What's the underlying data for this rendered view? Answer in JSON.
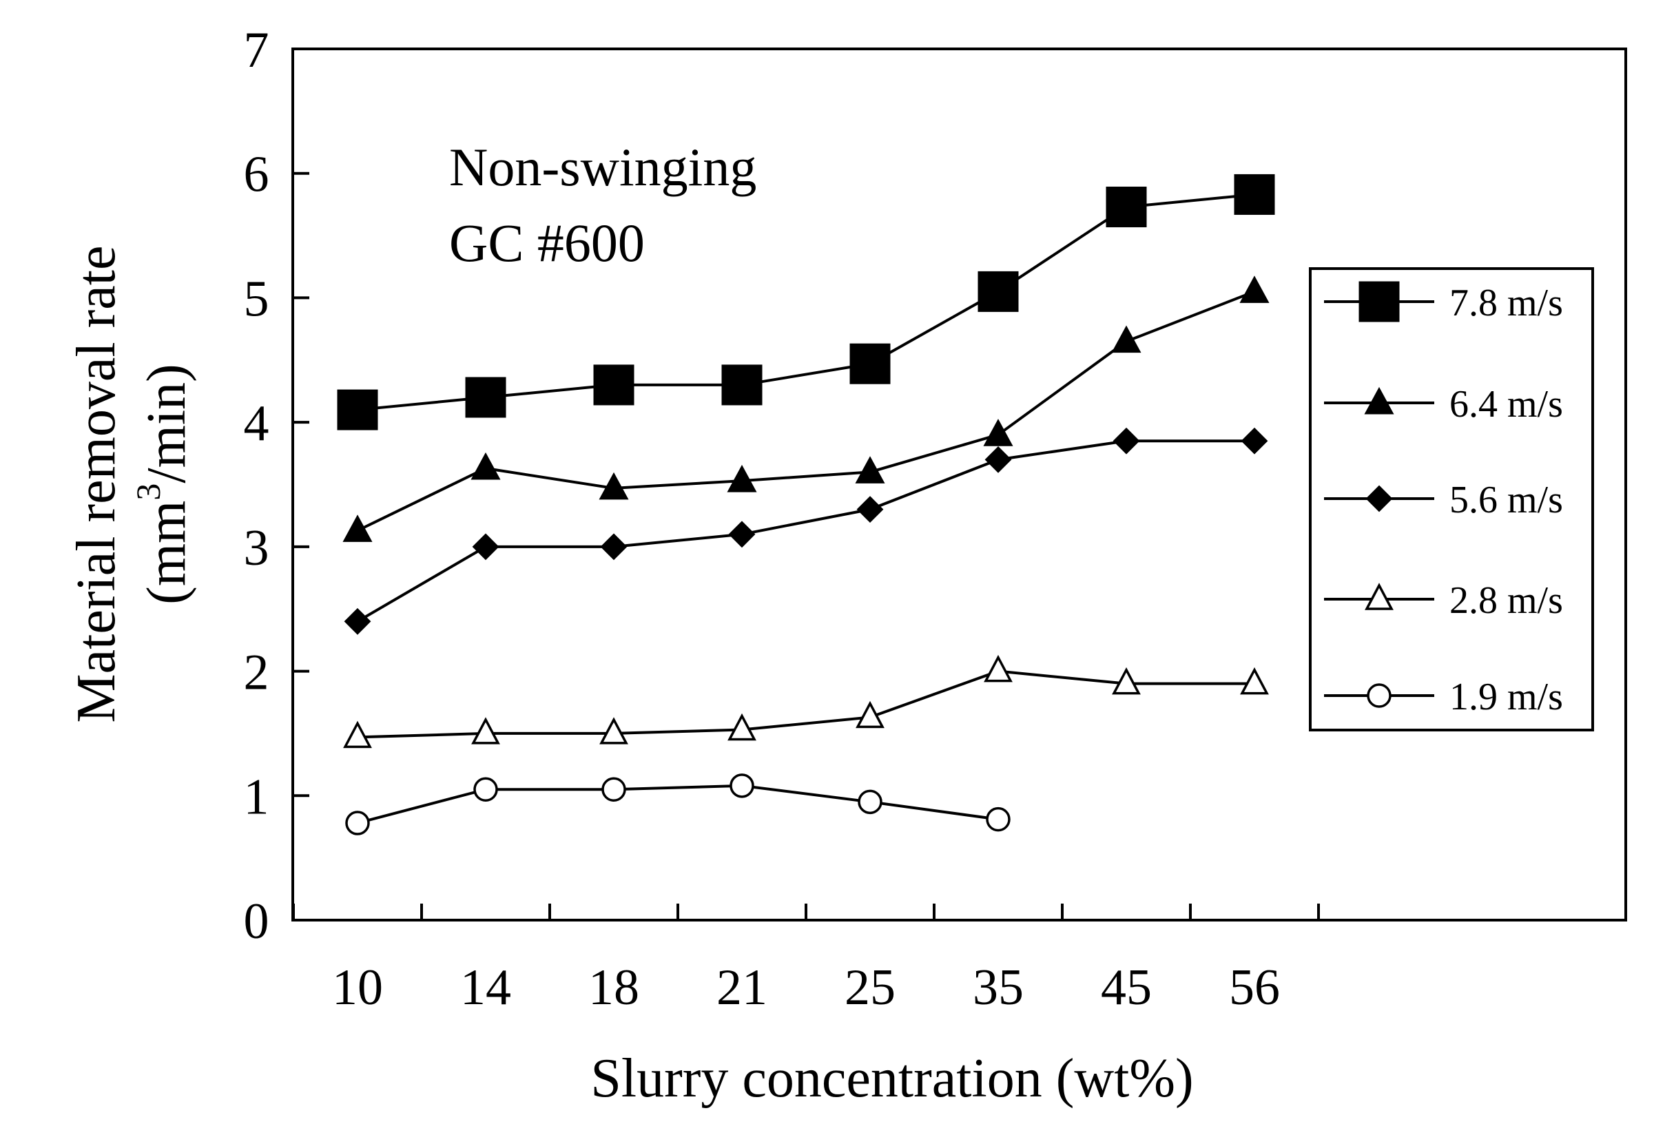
{
  "chart_data": {
    "type": "line",
    "title": "",
    "xlabel": "Slurry concentration (wt%)",
    "ylabel": {
      "line1": "Material removal rate",
      "line2_prefix": "(mm",
      "line2_sup": "3",
      "line2_suffix": "/min)"
    },
    "categories": [
      "10",
      "14",
      "18",
      "21",
      "25",
      "35",
      "45",
      "56"
    ],
    "ylim": [
      0,
      7
    ],
    "yticks": [
      "0",
      "1",
      "2",
      "3",
      "4",
      "5",
      "6",
      "7"
    ],
    "grid": false,
    "legend_position": "right",
    "annotations": [
      "Non-swinging",
      "GC #600"
    ],
    "series": [
      {
        "name": "7.8 m/s",
        "marker": "square-filled",
        "values": [
          4.1,
          4.2,
          4.3,
          4.3,
          4.47,
          5.05,
          5.73,
          5.83
        ]
      },
      {
        "name": "6.4 m/s",
        "marker": "triangle-filled",
        "values": [
          3.13,
          3.63,
          3.47,
          3.53,
          3.6,
          3.9,
          4.65,
          5.05
        ]
      },
      {
        "name": "5.6 m/s",
        "marker": "diamond-filled",
        "values": [
          2.4,
          3.0,
          3.0,
          3.1,
          3.3,
          3.7,
          3.85,
          3.85
        ]
      },
      {
        "name": "2.8 m/s",
        "marker": "triangle-open",
        "values": [
          1.47,
          1.5,
          1.5,
          1.53,
          1.63,
          2.0,
          1.9,
          1.9
        ]
      },
      {
        "name": "1.9 m/s",
        "marker": "circle-open",
        "values": [
          0.78,
          1.05,
          1.05,
          1.08,
          0.95,
          0.81,
          null,
          null
        ]
      }
    ]
  }
}
